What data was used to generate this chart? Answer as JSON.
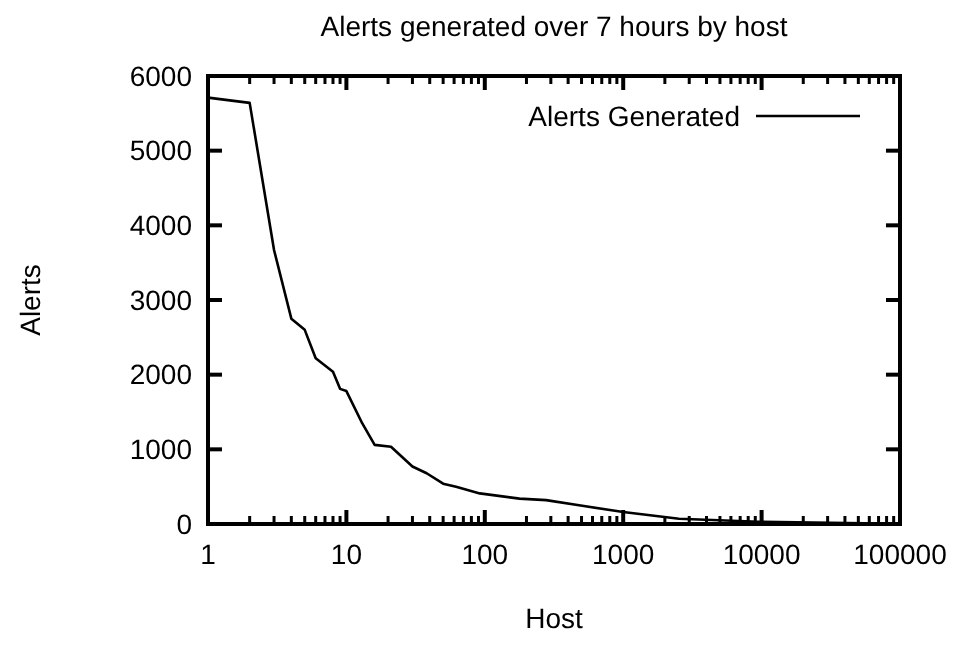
{
  "chart_data": {
    "type": "line",
    "title": "Alerts generated over 7 hours by host",
    "xlabel": "Host",
    "ylabel": "Alerts",
    "log": "x",
    "legend": "top right",
    "xlim": [
      1,
      100000
    ],
    "xticks": [
      1,
      10,
      100,
      1000,
      10000,
      100000
    ],
    "ylim": [
      0,
      6000
    ],
    "yticks": [
      0,
      1000,
      2000,
      3000,
      4000,
      5000,
      6000
    ],
    "series": [
      {
        "name": "Alerts Generated",
        "color": "#000000",
        "x": [
          1,
          2,
          3,
          4,
          5,
          6,
          8,
          9,
          10,
          13,
          16,
          21,
          30,
          38,
          50,
          62,
          92,
          178,
          277,
          480,
          1000,
          2530,
          9500,
          56000
        ],
        "values": [
          5710,
          5640,
          3670,
          2750,
          2600,
          2220,
          2040,
          1810,
          1780,
          1350,
          1060,
          1035,
          770,
          680,
          540,
          500,
          410,
          340,
          320,
          250,
          160,
          70,
          30,
          10
        ]
      }
    ]
  }
}
